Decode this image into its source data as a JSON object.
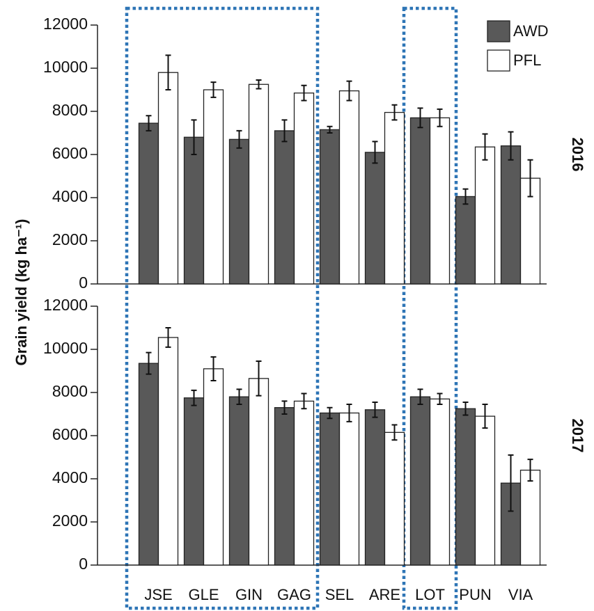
{
  "chart_data": {
    "type": "bar",
    "ylabel": "Grain yield (kg ha⁻¹)",
    "categories": [
      "JSE",
      "GLE",
      "GIN",
      "GAG",
      "SEL",
      "ARE",
      "LOT",
      "PUN",
      "VIA"
    ],
    "legend": "upper right",
    "series": [
      {
        "name": "AWD",
        "color": "#595959"
      },
      {
        "name": "PFL",
        "color": "#ffffff"
      }
    ],
    "ylim": [
      0,
      12000
    ],
    "yticks": [
      0,
      2000,
      4000,
      6000,
      8000,
      10000,
      12000
    ],
    "panels": [
      {
        "label": "2016",
        "series": [
          {
            "values": [
              7450,
              6800,
              6700,
              7100,
              7150,
              6100,
              7700,
              4050,
              6400
            ],
            "errors": [
              350,
              800,
              400,
              500,
              150,
              500,
              450,
              350,
              650
            ]
          },
          {
            "values": [
              9800,
              9000,
              9250,
              8850,
              8950,
              7950,
              7700,
              6350,
              4900
            ],
            "errors": [
              800,
              350,
              200,
              350,
              450,
              350,
              400,
              600,
              850
            ]
          }
        ]
      },
      {
        "label": "2017",
        "series": [
          {
            "values": [
              9350,
              7750,
              7800,
              7300,
              7050,
              7200,
              7800,
              7250,
              3800
            ],
            "errors": [
              500,
              350,
              350,
              300,
              250,
              350,
              350,
              300,
              1300
            ]
          },
          {
            "values": [
              10550,
              9100,
              8650,
              7600,
              7050,
              6150,
              7700,
              6900,
              4400
            ],
            "errors": [
              450,
              550,
              800,
              350,
              400,
              350,
              250,
              550,
              500
            ]
          }
        ]
      }
    ]
  }
}
